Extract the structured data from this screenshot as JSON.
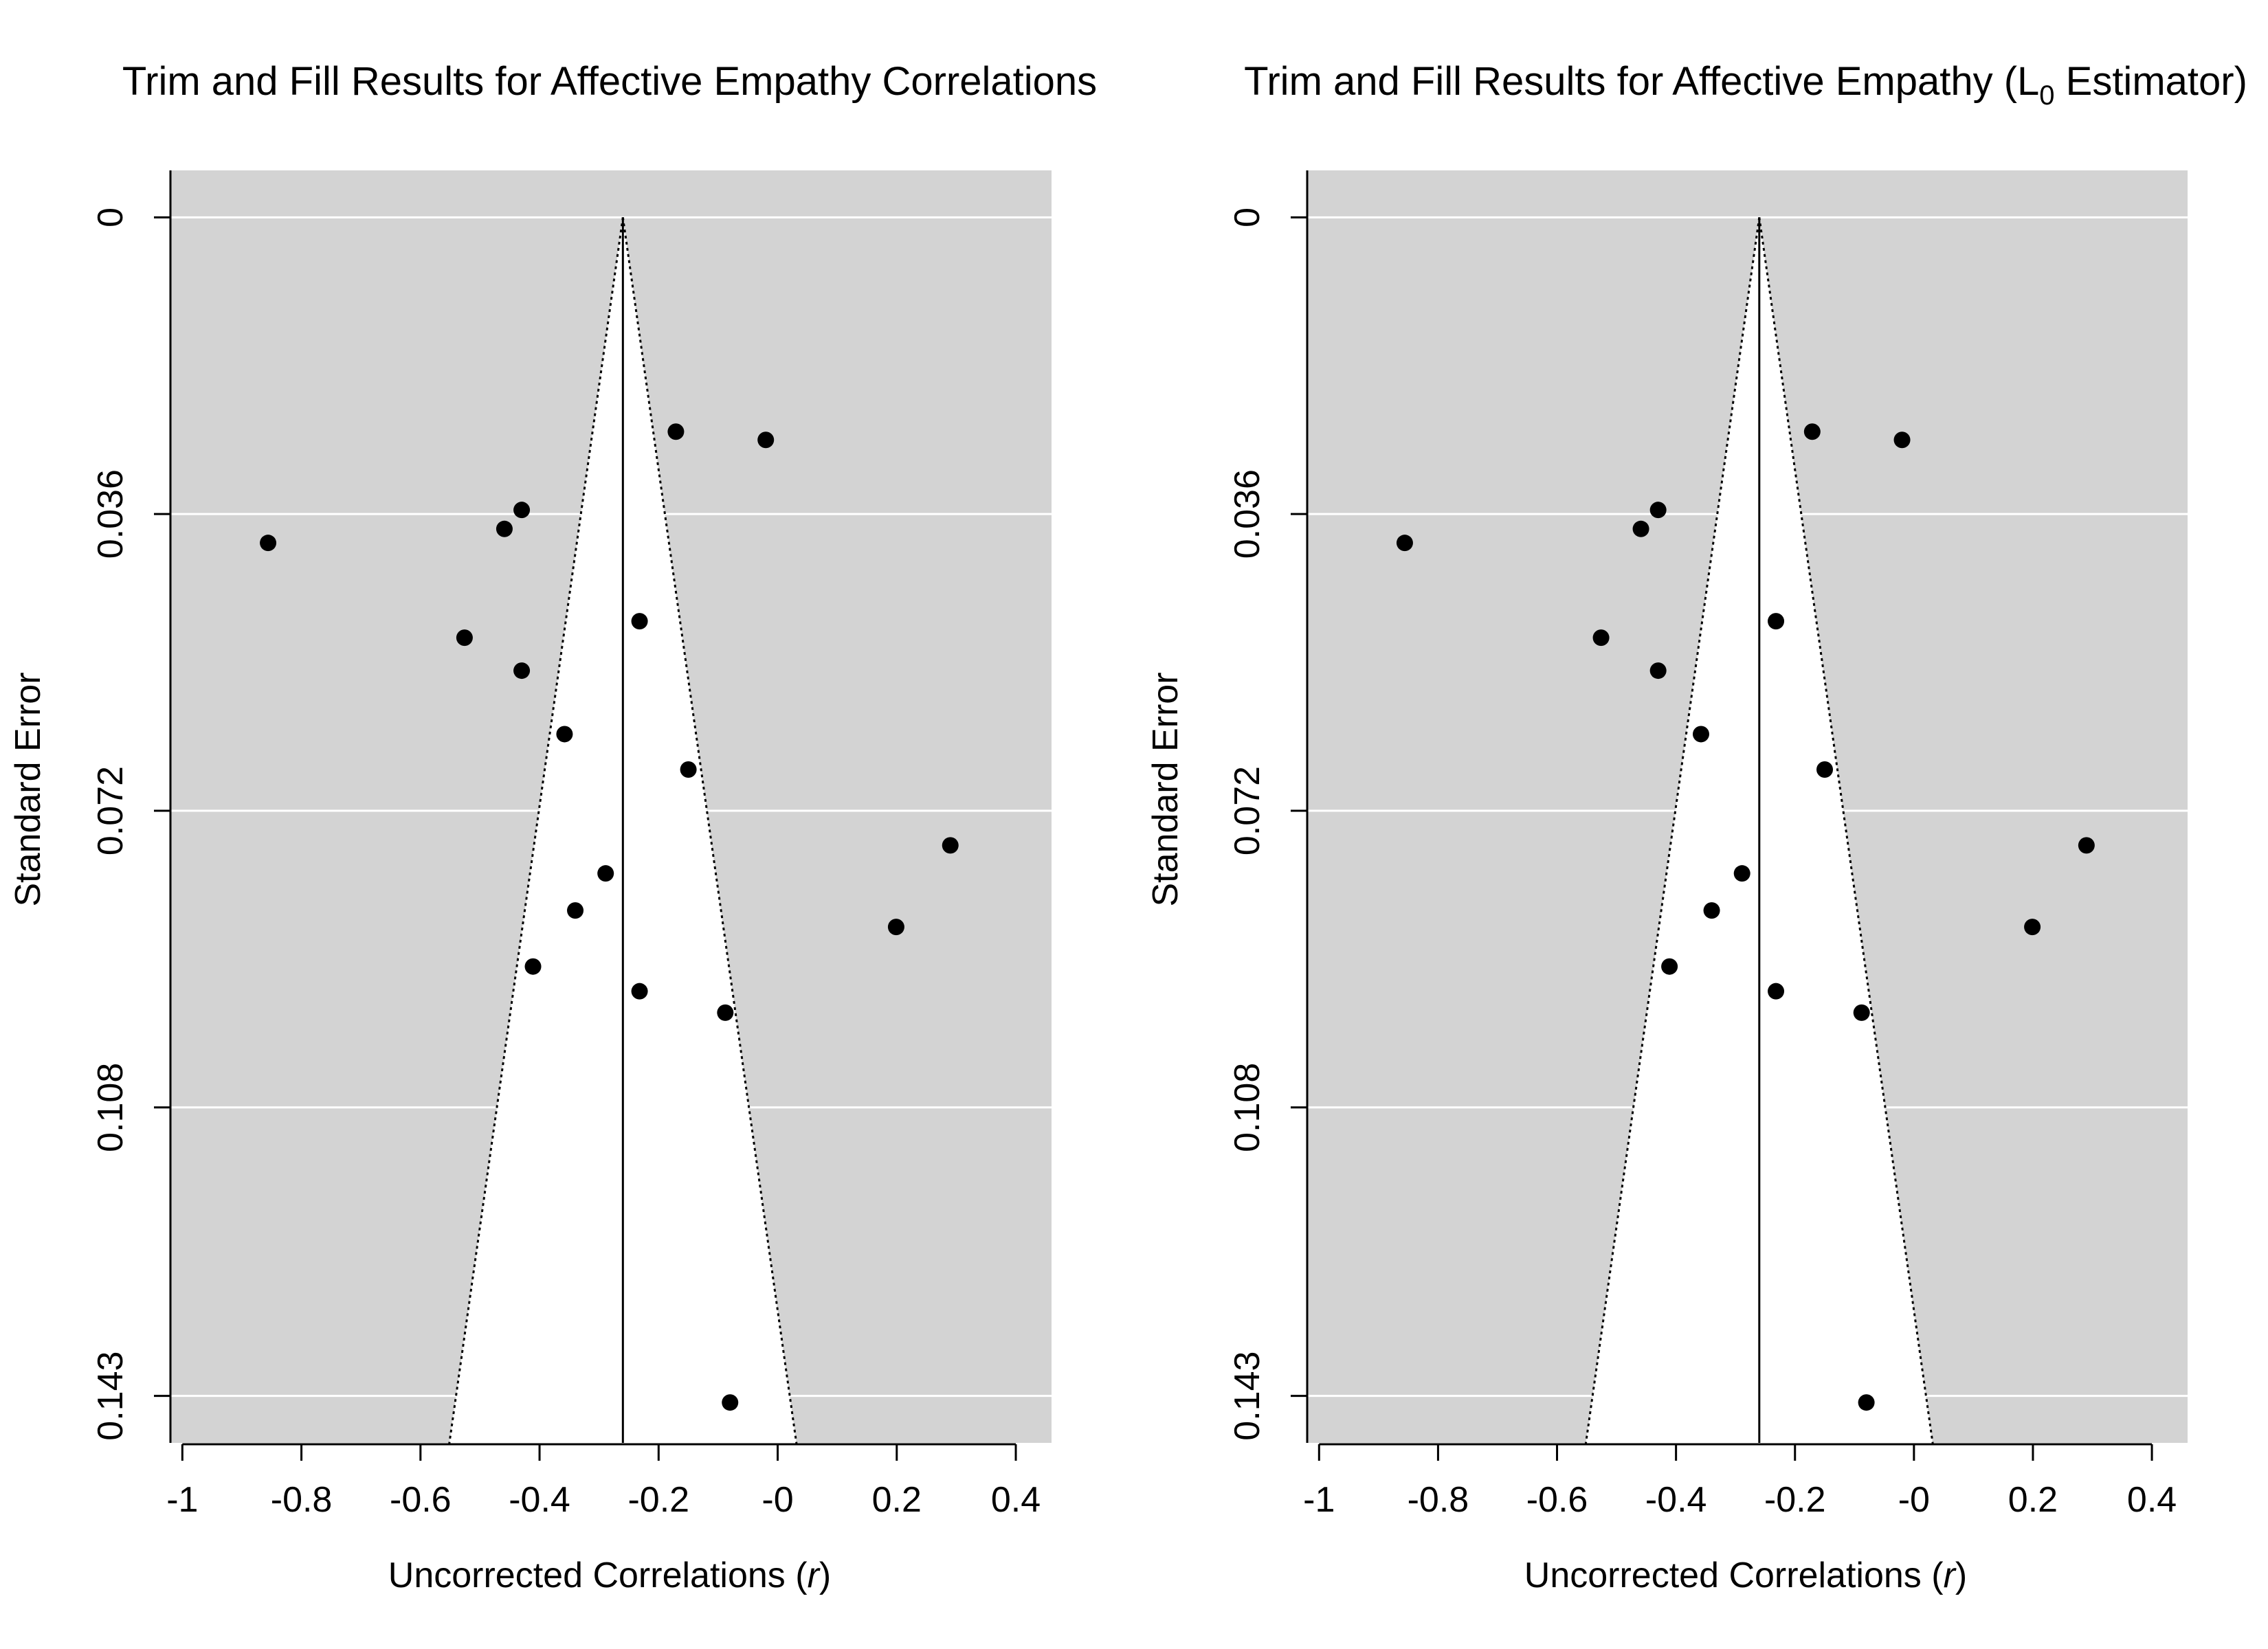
{
  "chart_data": [
    {
      "type": "scatter",
      "title": "Trim and Fill Results for Affective Empathy Correlations",
      "title_parts": [],
      "xlabel_parts": [
        "Uncorrected Correlations (",
        "r",
        ")"
      ],
      "ylabel": "Standard Error",
      "xlim": [
        -1.02,
        0.46
      ],
      "ylim": [
        0.1487,
        -0.0057
      ],
      "y_reversed": true,
      "x_ticks": [
        -1,
        -0.8,
        -0.6,
        -0.4,
        -0.2,
        0,
        0.2,
        0.4
      ],
      "x_tick_labels": [
        "-1",
        "-0.8",
        "-0.6",
        "-0.4",
        "-0.2",
        "-0",
        "0.2",
        "0.4"
      ],
      "y_ticks": [
        0,
        0.036,
        0.072,
        0.108,
        0.143
      ],
      "y_tick_labels": [
        "0",
        "0.036",
        "0.072",
        "0.108",
        "0.143"
      ],
      "center_estimate": -0.26,
      "funnel_se_max": 0.149,
      "background_color": "#d3d3d3",
      "funnel_color": "#ffffff",
      "grid": true,
      "points": [
        {
          "x": -0.171,
          "y": 0.026
        },
        {
          "x": -0.02,
          "y": 0.027
        },
        {
          "x": -0.43,
          "y": 0.0355
        },
        {
          "x": -0.459,
          "y": 0.0378
        },
        {
          "x": -0.856,
          "y": 0.0395
        },
        {
          "x": -0.232,
          "y": 0.049
        },
        {
          "x": -0.526,
          "y": 0.051
        },
        {
          "x": -0.43,
          "y": 0.055
        },
        {
          "x": -0.358,
          "y": 0.0627
        },
        {
          "x": -0.15,
          "y": 0.067
        },
        {
          "x": 0.29,
          "y": 0.0762
        },
        {
          "x": -0.289,
          "y": 0.0796
        },
        {
          "x": -0.34,
          "y": 0.0841
        },
        {
          "x": 0.199,
          "y": 0.0861
        },
        {
          "x": -0.411,
          "y": 0.0909
        },
        {
          "x": -0.232,
          "y": 0.0939
        },
        {
          "x": -0.088,
          "y": 0.0965
        },
        {
          "x": -0.08,
          "y": 0.1438
        }
      ]
    },
    {
      "type": "scatter",
      "title": "",
      "title_parts": [
        "Trim and Fill Results for Affective Empathy (L",
        "0",
        " Estimator)"
      ],
      "xlabel_parts": [
        "Uncorrected Correlations (",
        "r",
        ")"
      ],
      "ylabel": "Standard Error",
      "xlim": [
        -1.02,
        0.46
      ],
      "ylim": [
        0.1487,
        -0.0057
      ],
      "y_reversed": true,
      "x_ticks": [
        -1,
        -0.8,
        -0.6,
        -0.4,
        -0.2,
        0,
        0.2,
        0.4
      ],
      "x_tick_labels": [
        "-1",
        "-0.8",
        "-0.6",
        "-0.4",
        "-0.2",
        "-0",
        "0.2",
        "0.4"
      ],
      "y_ticks": [
        0,
        0.036,
        0.072,
        0.108,
        0.143
      ],
      "y_tick_labels": [
        "0",
        "0.036",
        "0.072",
        "0.108",
        "0.143"
      ],
      "center_estimate": -0.26,
      "funnel_se_max": 0.149,
      "background_color": "#d3d3d3",
      "funnel_color": "#ffffff",
      "grid": true,
      "points": [
        {
          "x": -0.171,
          "y": 0.026
        },
        {
          "x": -0.02,
          "y": 0.027
        },
        {
          "x": -0.43,
          "y": 0.0355
        },
        {
          "x": -0.459,
          "y": 0.0378
        },
        {
          "x": -0.856,
          "y": 0.0395
        },
        {
          "x": -0.232,
          "y": 0.049
        },
        {
          "x": -0.526,
          "y": 0.051
        },
        {
          "x": -0.43,
          "y": 0.055
        },
        {
          "x": -0.358,
          "y": 0.0627
        },
        {
          "x": -0.15,
          "y": 0.067
        },
        {
          "x": 0.29,
          "y": 0.0762
        },
        {
          "x": -0.289,
          "y": 0.0796
        },
        {
          "x": -0.34,
          "y": 0.0841
        },
        {
          "x": 0.199,
          "y": 0.0861
        },
        {
          "x": -0.411,
          "y": 0.0909
        },
        {
          "x": -0.232,
          "y": 0.0939
        },
        {
          "x": -0.088,
          "y": 0.0965
        },
        {
          "x": -0.08,
          "y": 0.1438
        }
      ]
    }
  ]
}
